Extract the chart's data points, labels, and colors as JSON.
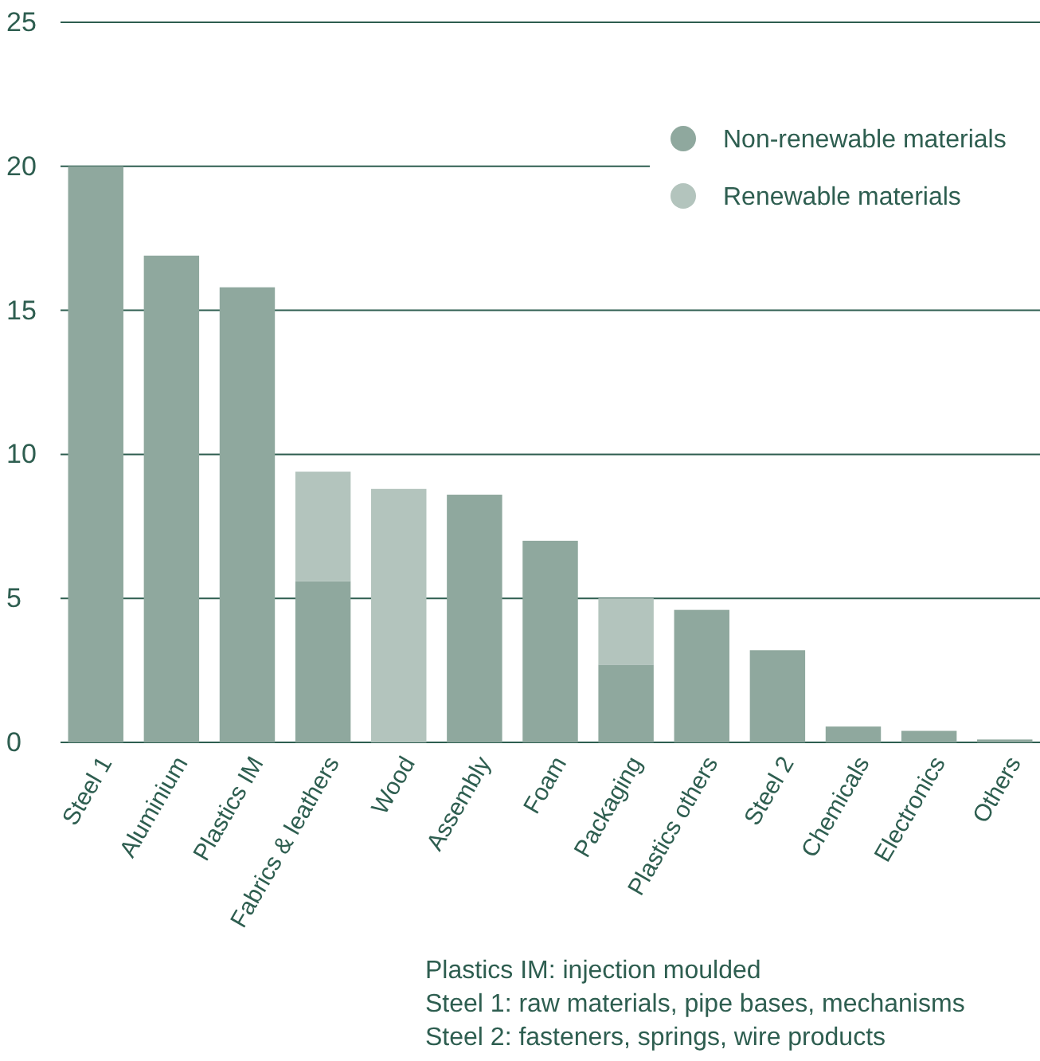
{
  "chart_data": {
    "type": "bar",
    "stacked": true,
    "categories": [
      "Steel 1",
      "Aluminium",
      "Plastics IM",
      "Fabrics & leathers",
      "Wood",
      "Assembly",
      "Foam",
      "Packaging",
      "Plastics others",
      "Steel 2",
      "Chemicals",
      "Electronics",
      "Others"
    ],
    "series": [
      {
        "name": "Non-renewable materials",
        "color": "#8fa89e",
        "values": [
          20,
          16.9,
          15.8,
          5.6,
          0,
          8.6,
          7.0,
          2.7,
          4.6,
          3.2,
          0.55,
          0.4,
          0.1
        ]
      },
      {
        "name": "Renewable materials",
        "color": "#b3c4bd",
        "values": [
          0,
          0,
          0,
          3.8,
          8.8,
          0,
          0,
          2.3,
          0,
          0,
          0,
          0,
          0
        ]
      }
    ],
    "ylim": [
      0,
      25
    ],
    "yticks": [
      0,
      5,
      10,
      15,
      20,
      25
    ],
    "grid": "y",
    "legend": "top right",
    "annotations": [
      "Plastics IM: injection moulded",
      "Steel 1: raw materials, pipe bases, mechanisms",
      "Steel 2: fasteners, springs, wire products"
    ]
  }
}
